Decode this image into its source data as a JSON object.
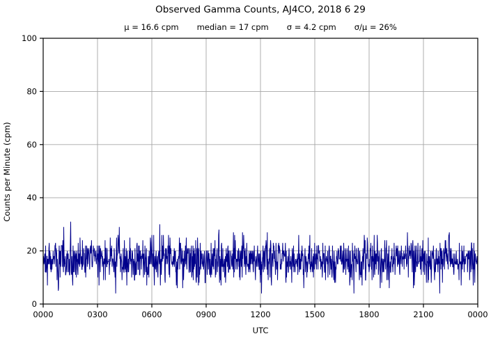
{
  "header": {
    "title": "Observed Gamma Counts, AJ4CO, 2018 6 29",
    "subtitle_parts": [
      "μ = 16.6 cpm",
      "median = 17 cpm",
      "σ = 4.2 cpm",
      "σ/μ = 26%"
    ]
  },
  "chart_data": {
    "type": "line",
    "title": "Observed Gamma Counts, AJ4CO, 2018 6 29",
    "subtitle": "μ = 16.6 cpm     median = 17 cpm     σ = 4.2 cpm     σ/μ = 26%",
    "stats": {
      "mean_cpm": 16.6,
      "median_cpm": 17,
      "sigma_cpm": 4.2,
      "sigma_over_mean_percent": 26
    },
    "xlabel": "UTC",
    "ylabel": "Counts per Minute (cpm)",
    "xlim_minutes": [
      0,
      1440
    ],
    "ylim": [
      0,
      100
    ],
    "x_ticks": [
      "0000",
      "0300",
      "0600",
      "0900",
      "1200",
      "1500",
      "1800",
      "2100",
      "0000"
    ],
    "x_tick_minutes": [
      0,
      180,
      360,
      540,
      720,
      900,
      1080,
      1260,
      1440
    ],
    "y_ticks": [
      0,
      20,
      40,
      60,
      80,
      100
    ],
    "grid": true,
    "legend": "none",
    "series": [
      {
        "name": "observed gamma counts",
        "color": "#00008b",
        "n_points": 1440,
        "noise_model": {
          "mean": 16.6,
          "sigma": 4.2,
          "min": 4,
          "max": 32,
          "seed": 20180629
        }
      }
    ]
  },
  "colors": {
    "line": "#00008b",
    "grid": "#a6a6a6",
    "axis": "#000000",
    "background": "#ffffff"
  }
}
